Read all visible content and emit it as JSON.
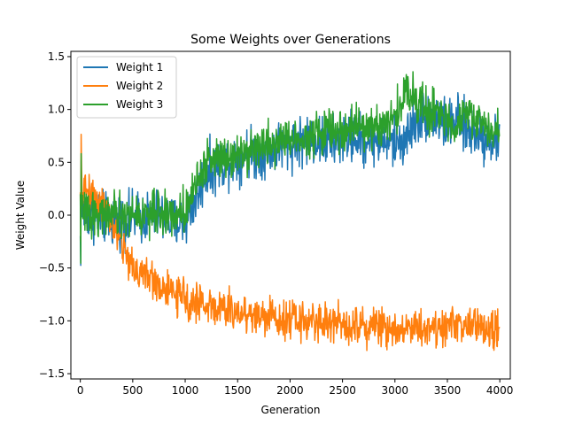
{
  "chart_data": {
    "type": "line",
    "title": "Some Weights over Generations",
    "xlabel": "Generation",
    "ylabel": "Weight Value",
    "xlim": [
      -90,
      4100
    ],
    "ylim": [
      -1.55,
      1.55
    ],
    "xticks": [
      0,
      500,
      1000,
      1500,
      2000,
      2500,
      3000,
      3500,
      4000
    ],
    "yticks": [
      -1.5,
      -1.0,
      -0.5,
      0.0,
      0.5,
      1.0,
      1.5
    ],
    "ytick_labels": [
      "−1.5",
      "−1.0",
      "−0.5",
      "0.0",
      "0.5",
      "1.0",
      "1.5"
    ],
    "grid": false,
    "legend_position": "top-left",
    "series": [
      {
        "name": "Weight 1",
        "color": "#1f77b4",
        "x": [
          0,
          100,
          200,
          300,
          400,
          500,
          600,
          700,
          800,
          900,
          1000,
          1100,
          1200,
          1300,
          1400,
          1500,
          1600,
          1700,
          1800,
          1900,
          2000,
          2100,
          2200,
          2300,
          2400,
          2500,
          2600,
          2700,
          2800,
          2900,
          3000,
          3100,
          3200,
          3300,
          3400,
          3500,
          3600,
          3700,
          3800,
          3900,
          4000
        ],
        "y": [
          0.05,
          0.0,
          -0.02,
          -0.05,
          -0.04,
          -0.03,
          -0.02,
          0.0,
          -0.02,
          -0.08,
          -0.05,
          0.15,
          0.4,
          0.45,
          0.52,
          0.55,
          0.6,
          0.58,
          0.62,
          0.65,
          0.68,
          0.7,
          0.72,
          0.7,
          0.68,
          0.72,
          0.74,
          0.7,
          0.72,
          0.7,
          0.68,
          0.72,
          0.9,
          0.95,
          0.92,
          0.85,
          0.88,
          0.8,
          0.78,
          0.72,
          0.72
        ],
        "noise": 0.12
      },
      {
        "name": "Weight 2",
        "color": "#ff7f0e",
        "x": [
          0,
          100,
          200,
          300,
          400,
          500,
          600,
          700,
          800,
          900,
          1000,
          1100,
          1200,
          1300,
          1400,
          1500,
          1600,
          1700,
          1800,
          1900,
          2000,
          2100,
          2200,
          2300,
          2400,
          2500,
          2600,
          2700,
          2800,
          2900,
          3000,
          3100,
          3200,
          3300,
          3400,
          3500,
          3600,
          3700,
          3800,
          3900,
          4000
        ],
        "y": [
          0.25,
          0.22,
          0.12,
          -0.08,
          -0.28,
          -0.5,
          -0.55,
          -0.62,
          -0.7,
          -0.75,
          -0.8,
          -0.82,
          -0.85,
          -0.88,
          -0.9,
          -0.92,
          -0.93,
          -0.95,
          -0.96,
          -0.97,
          -0.98,
          -1.0,
          -1.0,
          -1.01,
          -1.02,
          -1.02,
          -1.03,
          -1.04,
          -1.05,
          -1.06,
          -1.08,
          -1.05,
          -1.06,
          -1.07,
          -1.05,
          -1.06,
          -1.02,
          -1.05,
          -1.06,
          -1.08,
          -1.1
        ],
        "noise": 0.09
      },
      {
        "name": "Weight 3",
        "color": "#2ca02c",
        "x": [
          0,
          100,
          200,
          300,
          400,
          500,
          600,
          700,
          800,
          900,
          1000,
          1100,
          1200,
          1300,
          1400,
          1500,
          1600,
          1700,
          1800,
          1900,
          2000,
          2100,
          2200,
          2300,
          2400,
          2500,
          2600,
          2700,
          2800,
          2900,
          3000,
          3100,
          3200,
          3300,
          3400,
          3500,
          3600,
          3700,
          3800,
          3900,
          4000
        ],
        "y": [
          0.02,
          0.02,
          0.0,
          0.0,
          -0.02,
          0.0,
          0.0,
          0.02,
          0.02,
          0.0,
          0.05,
          0.3,
          0.5,
          0.55,
          0.58,
          0.6,
          0.62,
          0.65,
          0.68,
          0.7,
          0.72,
          0.74,
          0.76,
          0.78,
          0.8,
          0.8,
          0.82,
          0.82,
          0.84,
          0.86,
          0.9,
          1.18,
          1.1,
          1.0,
          0.95,
          0.88,
          0.9,
          0.95,
          0.88,
          0.82,
          0.78
        ],
        "noise": 0.1
      }
    ]
  }
}
